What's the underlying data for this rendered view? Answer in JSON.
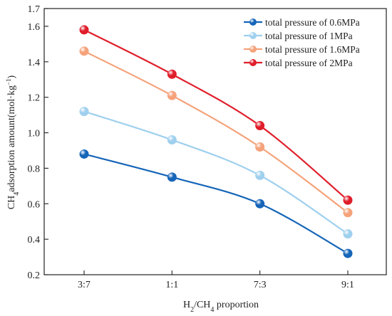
{
  "chart_data": {
    "type": "line",
    "categories": [
      "3:7",
      "1:1",
      "7:3",
      "9:1"
    ],
    "xlabel": {
      "main": "H",
      "sub1": "2",
      "mid": "/CH",
      "sub2": "4",
      "tail": " proportion"
    },
    "ylabel": {
      "main": "CH",
      "sub": "4",
      "tail": "adsorption amount(mol·kg",
      "sup": "−1",
      "close": ")"
    },
    "ylim": [
      0.2,
      1.7
    ],
    "yticks": [
      "0.2",
      "0.4",
      "0.6",
      "0.8",
      "1.0",
      "1.2",
      "1.4",
      "1.6",
      "1.7"
    ],
    "legend_position": "top-right",
    "grid": false,
    "series": [
      {
        "name": "total pressure of 0.6MPa",
        "color": "#1565b8",
        "values": [
          0.88,
          0.75,
          0.6,
          0.32
        ]
      },
      {
        "name": "total pressure of 1MPa",
        "color": "#9fd0ee",
        "values": [
          1.12,
          0.96,
          0.76,
          0.43
        ]
      },
      {
        "name": "total pressure of 1.6MPa",
        "color": "#f5a27a",
        "values": [
          1.46,
          1.21,
          0.92,
          0.55
        ]
      },
      {
        "name": "total pressure of 2MPa",
        "color": "#e01e2b",
        "values": [
          1.58,
          1.33,
          1.04,
          0.62
        ]
      }
    ]
  }
}
